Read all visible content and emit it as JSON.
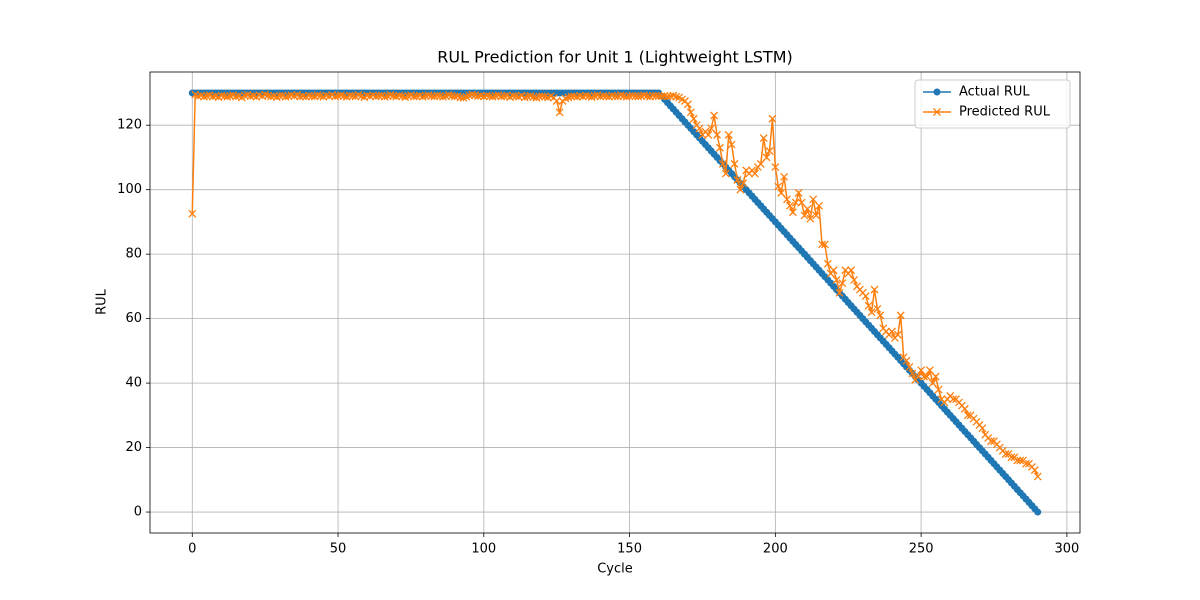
{
  "chart_data": {
    "type": "line",
    "title": "RUL Prediction for Unit 1 (Lightweight LSTM)",
    "x_label": "Cycle",
    "y_label": "RUL",
    "xlim": [
      -14.5,
      304.5
    ],
    "ylim": [
      -6.5,
      136.5
    ],
    "xticks": [
      0,
      50,
      100,
      150,
      200,
      250,
      300
    ],
    "yticks": [
      0,
      20,
      40,
      60,
      80,
      100,
      120
    ],
    "grid": true,
    "legend": "upper right",
    "x": [
      0,
      1,
      2,
      3,
      4,
      5,
      6,
      7,
      8,
      9,
      10,
      11,
      12,
      13,
      14,
      15,
      16,
      17,
      18,
      19,
      20,
      21,
      22,
      23,
      24,
      25,
      26,
      27,
      28,
      29,
      30,
      31,
      32,
      33,
      34,
      35,
      36,
      37,
      38,
      39,
      40,
      41,
      42,
      43,
      44,
      45,
      46,
      47,
      48,
      49,
      50,
      51,
      52,
      53,
      54,
      55,
      56,
      57,
      58,
      59,
      60,
      61,
      62,
      63,
      64,
      65,
      66,
      67,
      68,
      69,
      70,
      71,
      72,
      73,
      74,
      75,
      76,
      77,
      78,
      79,
      80,
      81,
      82,
      83,
      84,
      85,
      86,
      87,
      88,
      89,
      90,
      91,
      92,
      93,
      94,
      95,
      96,
      97,
      98,
      99,
      100,
      101,
      102,
      103,
      104,
      105,
      106,
      107,
      108,
      109,
      110,
      111,
      112,
      113,
      114,
      115,
      116,
      117,
      118,
      119,
      120,
      121,
      122,
      123,
      124,
      125,
      126,
      127,
      128,
      129,
      130,
      131,
      132,
      133,
      134,
      135,
      136,
      137,
      138,
      139,
      140,
      141,
      142,
      143,
      144,
      145,
      146,
      147,
      148,
      149,
      150,
      151,
      152,
      153,
      154,
      155,
      156,
      157,
      158,
      159,
      160,
      161,
      162,
      163,
      164,
      165,
      166,
      167,
      168,
      169,
      170,
      171,
      172,
      173,
      174,
      175,
      176,
      177,
      178,
      179,
      180,
      181,
      182,
      183,
      184,
      185,
      186,
      187,
      188,
      189,
      190,
      191,
      192,
      193,
      194,
      195,
      196,
      197,
      198,
      199,
      200,
      201,
      202,
      203,
      204,
      205,
      206,
      207,
      208,
      209,
      210,
      211,
      212,
      213,
      214,
      215,
      216,
      217,
      218,
      219,
      220,
      221,
      222,
      223,
      224,
      225,
      226,
      227,
      228,
      229,
      230,
      231,
      232,
      233,
      234,
      235,
      236,
      237,
      238,
      239,
      240,
      241,
      242,
      243,
      244,
      245,
      246,
      247,
      248,
      249,
      250,
      251,
      252,
      253,
      254,
      255,
      256,
      257,
      258,
      259,
      260,
      261,
      262,
      263,
      264,
      265,
      266,
      267,
      268,
      269,
      270,
      271,
      272,
      273,
      274,
      275,
      276,
      277,
      278,
      279,
      280,
      281,
      282,
      283,
      284,
      285,
      286,
      287,
      288,
      289,
      290
    ],
    "series": [
      {
        "name": "Actual RUL",
        "color": "#1f77b4",
        "marker": "o",
        "values": [
          130,
          130,
          130,
          130,
          130,
          130,
          130,
          130,
          130,
          130,
          130,
          130,
          130,
          130,
          130,
          130,
          130,
          130,
          130,
          130,
          130,
          130,
          130,
          130,
          130,
          130,
          130,
          130,
          130,
          130,
          130,
          130,
          130,
          130,
          130,
          130,
          130,
          130,
          130,
          130,
          130,
          130,
          130,
          130,
          130,
          130,
          130,
          130,
          130,
          130,
          130,
          130,
          130,
          130,
          130,
          130,
          130,
          130,
          130,
          130,
          130,
          130,
          130,
          130,
          130,
          130,
          130,
          130,
          130,
          130,
          130,
          130,
          130,
          130,
          130,
          130,
          130,
          130,
          130,
          130,
          130,
          130,
          130,
          130,
          130,
          130,
          130,
          130,
          130,
          130,
          130,
          130,
          130,
          130,
          130,
          130,
          130,
          130,
          130,
          130,
          130,
          130,
          130,
          130,
          130,
          130,
          130,
          130,
          130,
          130,
          130,
          130,
          130,
          130,
          130,
          130,
          130,
          130,
          130,
          130,
          130,
          130,
          130,
          130,
          130,
          130,
          130,
          130,
          130,
          130,
          130,
          130,
          130,
          130,
          130,
          130,
          130,
          130,
          130,
          130,
          130,
          130,
          130,
          130,
          130,
          130,
          130,
          130,
          130,
          130,
          130,
          130,
          130,
          130,
          130,
          130,
          130,
          130,
          130,
          130,
          130,
          129,
          128,
          127,
          126,
          125,
          124,
          123,
          122,
          121,
          120,
          119,
          118,
          117,
          116,
          115,
          114,
          113,
          112,
          111,
          110,
          109,
          108,
          107,
          106,
          105,
          104,
          103,
          102,
          101,
          100,
          99,
          98,
          97,
          96,
          95,
          94,
          93,
          92,
          91,
          90,
          89,
          88,
          87,
          86,
          85,
          84,
          83,
          82,
          81,
          80,
          79,
          78,
          77,
          76,
          75,
          74,
          73,
          72,
          71,
          70,
          69,
          68,
          67,
          66,
          65,
          64,
          63,
          62,
          61,
          60,
          59,
          58,
          57,
          56,
          55,
          54,
          53,
          52,
          51,
          50,
          49,
          48,
          47,
          46,
          45,
          44,
          43,
          42,
          41,
          40,
          39,
          38,
          37,
          36,
          35,
          34,
          33,
          32,
          31,
          30,
          29,
          28,
          27,
          26,
          25,
          24,
          23,
          22,
          21,
          20,
          19,
          18,
          17,
          16,
          15,
          14,
          13,
          12,
          11,
          10,
          9,
          8,
          7,
          6,
          5,
          4,
          3,
          2,
          1,
          0
        ]
      },
      {
        "name": "Predicted RUL",
        "color": "#ff7f0e",
        "marker": "x",
        "values": [
          92.5,
          129.5,
          129,
          129.2,
          128.8,
          129.1,
          129.3,
          128.9,
          129,
          128.7,
          129.2,
          129,
          128.8,
          129.1,
          129.3,
          128.9,
          129,
          128.6,
          129.2,
          129.4,
          129,
          129.1,
          128.8,
          129.3,
          129,
          129.5,
          129.2,
          128.9,
          129,
          128.7,
          129.1,
          129.2,
          128.8,
          129,
          129.3,
          129.1,
          129.4,
          128.9,
          129,
          128.8,
          129.2,
          129,
          128.9,
          129.3,
          129.1,
          128.8,
          129.2,
          129,
          129.4,
          128.9,
          129.1,
          129.3,
          129,
          128.8,
          129.2,
          129.1,
          128.9,
          129.4,
          129,
          128.7,
          129.2,
          129,
          129.3,
          128.9,
          129.1,
          129.2,
          128.8,
          129,
          129.4,
          129.1,
          128.9,
          129.2,
          129,
          128.7,
          129.1,
          129.3,
          128.9,
          129,
          129.2,
          128.8,
          129.1,
          129.3,
          129,
          128.9,
          129.2,
          129.1,
          128.8,
          129,
          129.4,
          129.1,
          128.9,
          129,
          128.6,
          128.5,
          128.8,
          129.2,
          129.5,
          129.3,
          129,
          129.1,
          128.9,
          129.2,
          129,
          128.8,
          129.1,
          129.3,
          128.9,
          129,
          129.2,
          128.7,
          129.1,
          129,
          128.8,
          129.2,
          128.6,
          128.9,
          129.1,
          128.7,
          128.5,
          128.9,
          129,
          128.8,
          128.6,
          129,
          128.5,
          127.5,
          124,
          127.5,
          128.3,
          128.6,
          128.9,
          129,
          128.8,
          129.1,
          128.9,
          129.2,
          129,
          128.7,
          129.1,
          129.3,
          128.9,
          129.1,
          129,
          128.8,
          129.2,
          129,
          128.9,
          129.3,
          129.1,
          128.8,
          129,
          129.2,
          129,
          128.9,
          129.1,
          129.3,
          129,
          128.8,
          129.2,
          129.1,
          129,
          129,
          129.1,
          128.9,
          129,
          129.2,
          128.8,
          128.6,
          128,
          127.5,
          126.5,
          124,
          122,
          120,
          119,
          117,
          118,
          117,
          119,
          123,
          117,
          113,
          108,
          105,
          117,
          114,
          108,
          103,
          100,
          102,
          106,
          105,
          106,
          105,
          107,
          108,
          116,
          110,
          112,
          122,
          107,
          101,
          99,
          104,
          97,
          95,
          93,
          96,
          99,
          96,
          92,
          94,
          91,
          97,
          92,
          95,
          83,
          83,
          77,
          74,
          75,
          72,
          68,
          71,
          75,
          74,
          75,
          72,
          70,
          69,
          68,
          67,
          64,
          62,
          69,
          63,
          61,
          57,
          56,
          55,
          56,
          54,
          55,
          61,
          48,
          47,
          45,
          43,
          41,
          42,
          44,
          42,
          42,
          44,
          40,
          42,
          38,
          35,
          34,
          35,
          36,
          35,
          35,
          34,
          33,
          32,
          30,
          30,
          29,
          28,
          27,
          26,
          24,
          23,
          22,
          22,
          21,
          20,
          19,
          18,
          18,
          17,
          17,
          16,
          16,
          16,
          15,
          15,
          14,
          13,
          11
        ]
      }
    ]
  }
}
